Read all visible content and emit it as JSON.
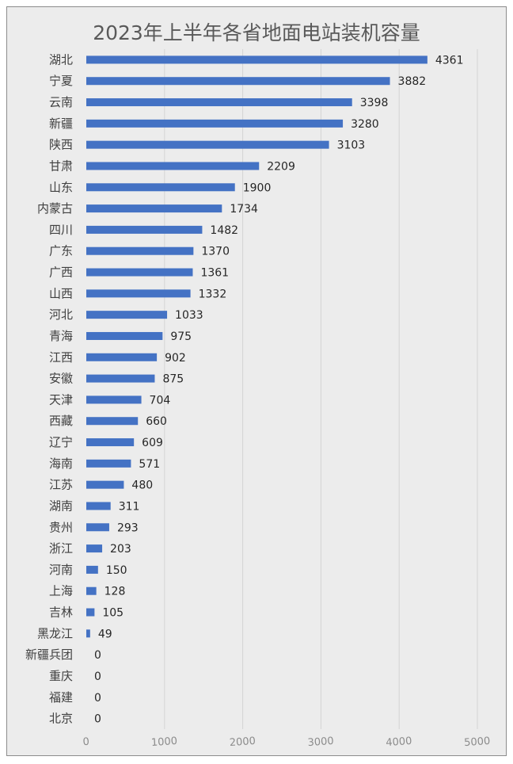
{
  "chart_data": {
    "type": "bar",
    "orientation": "horizontal",
    "title": "2023年上半年各省地面电站装机容量",
    "categories": [
      "湖北",
      "宁夏",
      "云南",
      "新疆",
      "陕西",
      "甘肃",
      "山东",
      "内蒙古",
      "四川",
      "广东",
      "广西",
      "山西",
      "河北",
      "青海",
      "江西",
      "安徽",
      "天津",
      "西藏",
      "辽宁",
      "海南",
      "江苏",
      "湖南",
      "贵州",
      "浙江",
      "河南",
      "上海",
      "吉林",
      "黑龙江",
      "新疆兵团",
      "重庆",
      "福建",
      "北京"
    ],
    "values": [
      4361,
      3882,
      3398,
      3280,
      3103,
      2209,
      1900,
      1734,
      1482,
      1370,
      1361,
      1332,
      1033,
      975,
      902,
      875,
      704,
      660,
      609,
      571,
      480,
      311,
      293,
      203,
      150,
      128,
      105,
      49,
      0,
      0,
      0,
      0
    ],
    "xlim": [
      0,
      5000
    ],
    "xticks": [
      0,
      1000,
      2000,
      3000,
      4000,
      5000
    ],
    "grid": true,
    "data_labels": true,
    "bar_color": "#4472c4"
  }
}
